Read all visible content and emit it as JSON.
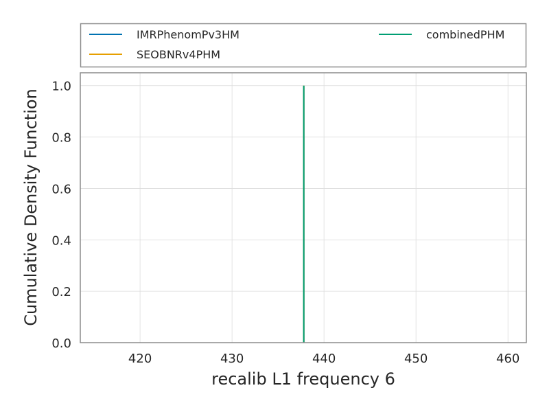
{
  "chart_data": {
    "type": "line",
    "plot_kind": "cumulative density function",
    "xlabel": "recalib L1 frequency 6",
    "ylabel": "Cumulative Density Function",
    "xlim": [
      413.5,
      462
    ],
    "ylim": [
      0,
      1.05
    ],
    "x_ticks": [
      420,
      430,
      440,
      450,
      460
    ],
    "y_ticks": [
      0.0,
      0.2,
      0.4,
      0.6,
      0.8,
      1.0
    ],
    "x_tick_labels": [
      "420",
      "430",
      "440",
      "450",
      "460"
    ],
    "y_tick_labels": [
      "0.0",
      "0.2",
      "0.4",
      "0.6",
      "0.8",
      "1.0"
    ],
    "grid": true,
    "legend_position": "top, above plot",
    "series": [
      {
        "name": "IMRPhenomPv3HM",
        "color": "#0072b2",
        "x": [
          437.8,
          437.8
        ],
        "y": [
          0.0,
          1.0
        ]
      },
      {
        "name": "SEOBNRv4PHM",
        "color": "#e69f00",
        "x": [
          437.8,
          437.8
        ],
        "y": [
          0.0,
          1.0
        ]
      },
      {
        "name": "combinedPHM",
        "color": "#009e73",
        "x": [
          437.8,
          437.8
        ],
        "y": [
          0.0,
          1.0
        ]
      }
    ]
  }
}
